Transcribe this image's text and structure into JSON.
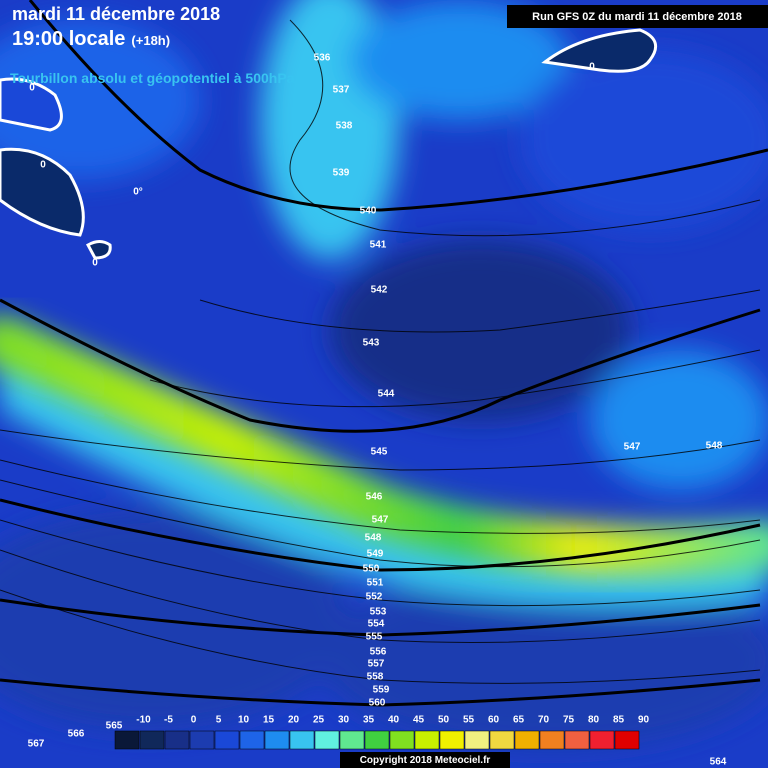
{
  "header": {
    "date": "mardi 11 décembre 2018",
    "time": "19:00 locale",
    "lead": "(+18h)",
    "subtitle": "Tourbillon absolu et géopotentiel à 500hPa"
  },
  "run_label": "Run GFS 0Z du mardi 11 décembre 2018",
  "contour_labels": [
    "536",
    "537",
    "538",
    "539",
    "540",
    "541",
    "542",
    "543",
    "544",
    "545",
    "546",
    "547",
    "548",
    "549",
    "550",
    "551",
    "552",
    "553",
    "554",
    "555",
    "556",
    "557",
    "558",
    "559",
    "560",
    "547",
    "548",
    "564",
    "565",
    "566",
    "567"
  ],
  "vorticity_labels": [
    "0",
    "0",
    "0°",
    "0",
    "0"
  ],
  "legend": {
    "values": [
      -10,
      -5,
      0,
      5,
      10,
      15,
      20,
      25,
      30,
      35,
      40,
      45,
      50,
      55,
      60,
      65,
      70,
      75,
      80,
      85,
      90
    ],
    "colors": [
      "#0a1838",
      "#10285a",
      "#182f88",
      "#1c3cb0",
      "#1a48d8",
      "#1e64e8",
      "#1e8cf0",
      "#38c4f0",
      "#60f0e0",
      "#60e890",
      "#40d040",
      "#80e020",
      "#c8f000",
      "#f0f000",
      "#f0f080",
      "#f0d840",
      "#f0b000",
      "#f08020",
      "#f06040",
      "#f02030",
      "#e00000"
    ]
  },
  "copyright": "Copyright 2018 Meteociel.fr"
}
